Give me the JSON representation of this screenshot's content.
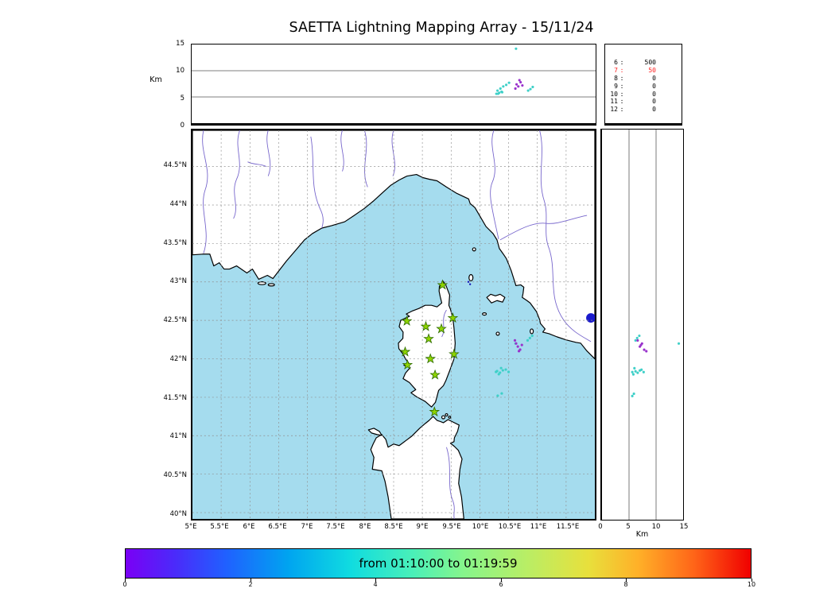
{
  "title": "SAETTA Lightning Mapping Array - 15/11/24",
  "alt_axis_label": "Km",
  "colors": {
    "sea": "#a5dcee",
    "land": "#ffffff",
    "river": "#7766cc",
    "lake": "#1a1acc",
    "star": "#8fd400",
    "star_edge": "#2d6a00",
    "cyan": "#3fd0c8",
    "purple": "#9933cc",
    "navy": "#1414b8",
    "highlight": "#ff2222"
  },
  "stats": {
    "rows": [
      {
        "label": "6",
        "value": "500",
        "highlight": false
      },
      {
        "label": "7",
        "value": "50",
        "highlight": true
      },
      {
        "label": "8",
        "value": "0",
        "highlight": false
      },
      {
        "label": "9",
        "value": "0",
        "highlight": false
      },
      {
        "label": "10",
        "value": "0",
        "highlight": false
      },
      {
        "label": "11",
        "value": "0",
        "highlight": false
      },
      {
        "label": "12",
        "value": "0",
        "highlight": false
      }
    ]
  },
  "colorbar": {
    "label": "from 01:10:00 to 01:19:59",
    "range": [
      0,
      10
    ],
    "ticks": [
      {
        "v": 0,
        "label": "0"
      },
      {
        "v": 2,
        "label": "2"
      },
      {
        "v": 4,
        "label": "4"
      },
      {
        "v": 6,
        "label": "6"
      },
      {
        "v": 8,
        "label": "8"
      },
      {
        "v": 10,
        "label": "10"
      }
    ]
  },
  "chart_data": {
    "type": "scatter",
    "title": "SAETTA Lightning Mapping Array - 15/11/24",
    "panels": {
      "map": {
        "xlim": [
          5,
          12
        ],
        "ylim": [
          39.92,
          44.97
        ],
        "lat_ticks": [
          {
            "v": 44.5,
            "label": "44.5°N"
          },
          {
            "v": 44,
            "label": "44°N"
          },
          {
            "v": 43.5,
            "label": "43.5°N"
          },
          {
            "v": 43,
            "label": "43°N"
          },
          {
            "v": 42.5,
            "label": "42.5°N"
          },
          {
            "v": 42,
            "label": "42°N"
          },
          {
            "v": 41.5,
            "label": "41.5°N"
          },
          {
            "v": 41,
            "label": "41°N"
          },
          {
            "v": 40.5,
            "label": "40.5°N"
          },
          {
            "v": 40,
            "label": "40°N"
          }
        ],
        "lon_ticks": [
          {
            "v": 5,
            "label": "5°E"
          },
          {
            "v": 5.5,
            "label": "5.5°E"
          },
          {
            "v": 6,
            "label": "6°E"
          },
          {
            "v": 6.5,
            "label": "6.5°E"
          },
          {
            "v": 7,
            "label": "7°E"
          },
          {
            "v": 7.5,
            "label": "7.5°E"
          },
          {
            "v": 8,
            "label": "8°E"
          },
          {
            "v": 8.5,
            "label": "8.5°E"
          },
          {
            "v": 9,
            "label": "9°E"
          },
          {
            "v": 9.5,
            "label": "9.5°E"
          },
          {
            "v": 10,
            "label": "10°E"
          },
          {
            "v": 10.5,
            "label": "10.5°E"
          },
          {
            "v": 11,
            "label": "11°E"
          },
          {
            "v": 11.5,
            "label": "11.5°E"
          }
        ]
      },
      "altitude_top": {
        "ylabel": "Km",
        "ylim": [
          0,
          15
        ],
        "yticks": [
          {
            "v": 15,
            "label": "15"
          },
          {
            "v": 10,
            "label": "10"
          },
          {
            "v": 5,
            "label": "5"
          },
          {
            "v": 0,
            "label": "0"
          }
        ],
        "gridlines_km": [
          5,
          10
        ]
      },
      "altitude_right": {
        "xlabel": "Km",
        "xlim": [
          0,
          15
        ],
        "xticks": [
          {
            "v": 0,
            "label": "0"
          },
          {
            "v": 5,
            "label": "5"
          },
          {
            "v": 10,
            "label": "10"
          },
          {
            "v": 15,
            "label": "15"
          }
        ],
        "gridlines_km": [
          5,
          10
        ]
      }
    },
    "stations_lon_lat": [
      [
        9.35,
        42.96
      ],
      [
        8.73,
        42.49
      ],
      [
        9.06,
        42.42
      ],
      [
        9.33,
        42.39
      ],
      [
        9.53,
        42.53
      ],
      [
        9.11,
        42.26
      ],
      [
        8.7,
        42.09
      ],
      [
        8.74,
        41.92
      ],
      [
        9.14,
        42.0
      ],
      [
        9.55,
        42.06
      ],
      [
        9.22,
        41.79
      ],
      [
        9.21,
        41.31
      ]
    ],
    "sources": [
      {
        "lon": 10.3,
        "lat": 41.84,
        "alt": 6.2,
        "color": "cyan"
      },
      {
        "lon": 10.35,
        "lat": 41.82,
        "alt": 6.6,
        "color": "cyan"
      },
      {
        "lon": 10.4,
        "lat": 41.85,
        "alt": 7.0,
        "color": "cyan"
      },
      {
        "lon": 10.33,
        "lat": 41.8,
        "alt": 5.8,
        "color": "cyan"
      },
      {
        "lon": 10.45,
        "lat": 41.86,
        "alt": 7.3,
        "color": "cyan"
      },
      {
        "lon": 10.5,
        "lat": 41.83,
        "alt": 7.7,
        "color": "cyan"
      },
      {
        "lon": 10.37,
        "lat": 41.88,
        "alt": 6.0,
        "color": "cyan"
      },
      {
        "lon": 10.28,
        "lat": 41.83,
        "alt": 5.6,
        "color": "cyan"
      },
      {
        "lon": 10.38,
        "lat": 41.55,
        "alt": 5.9,
        "color": "cyan"
      },
      {
        "lon": 10.31,
        "lat": 41.52,
        "alt": 5.6,
        "color": "cyan"
      },
      {
        "lon": 10.87,
        "lat": 42.27,
        "alt": 6.5,
        "color": "cyan"
      },
      {
        "lon": 10.91,
        "lat": 42.3,
        "alt": 6.9,
        "color": "cyan"
      },
      {
        "lon": 10.83,
        "lat": 42.24,
        "alt": 6.2,
        "color": "cyan"
      },
      {
        "lon": 10.62,
        "lat": 42.2,
        "alt": 14.2,
        "color": "cyan"
      },
      {
        "lon": 10.63,
        "lat": 42.2,
        "alt": 7.4,
        "color": "purple"
      },
      {
        "lon": 10.66,
        "lat": 42.16,
        "alt": 7.0,
        "color": "purple"
      },
      {
        "lon": 10.7,
        "lat": 42.12,
        "alt": 7.8,
        "color": "purple"
      },
      {
        "lon": 10.61,
        "lat": 42.24,
        "alt": 6.6,
        "color": "purple"
      },
      {
        "lon": 10.68,
        "lat": 42.1,
        "alt": 8.2,
        "color": "purple"
      },
      {
        "lon": 10.73,
        "lat": 42.18,
        "alt": 7.2,
        "color": "purple"
      }
    ],
    "map_extra_points": [
      {
        "lon": 9.8,
        "lat": 43.0,
        "color": "navy"
      },
      {
        "lon": 9.83,
        "lat": 42.97,
        "color": "navy"
      }
    ]
  }
}
